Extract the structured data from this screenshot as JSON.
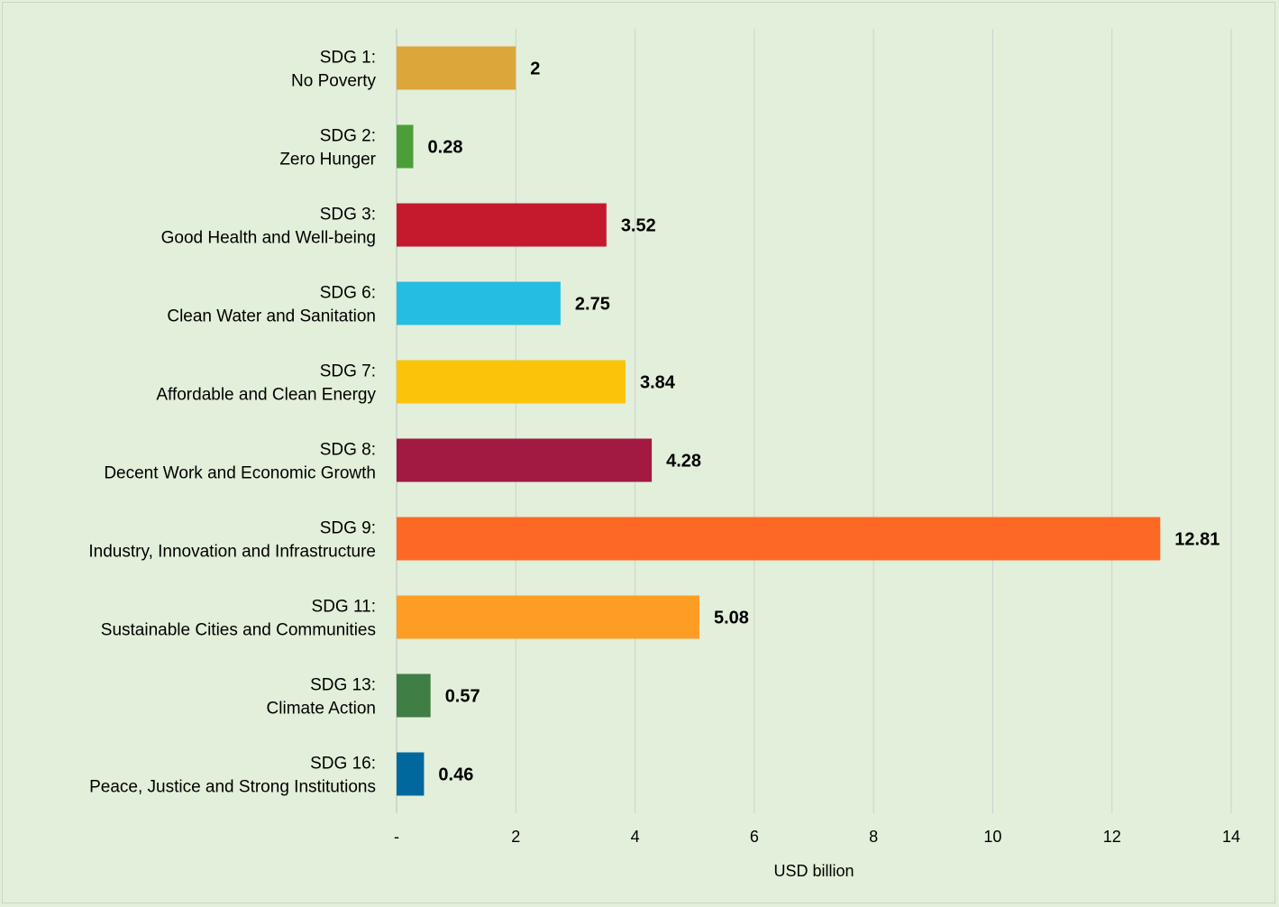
{
  "chart_data": {
    "type": "bar",
    "orientation": "horizontal",
    "categories": [
      {
        "line1": "SDG 1:",
        "line2": "No Poverty"
      },
      {
        "line1": "SDG 2:",
        "line2": "Zero Hunger"
      },
      {
        "line1": "SDG 3:",
        "line2": "Good Health and Well-being"
      },
      {
        "line1": "SDG 6:",
        "line2": "Clean Water and Sanitation"
      },
      {
        "line1": "SDG 7:",
        "line2": "Affordable and Clean Energy"
      },
      {
        "line1": "SDG 8:",
        "line2": "Decent Work and Economic Growth"
      },
      {
        "line1": "SDG 9:",
        "line2": "Industry, Innovation and Infrastructure"
      },
      {
        "line1": "SDG 11:",
        "line2": "Sustainable Cities and Communities"
      },
      {
        "line1": "SDG 13:",
        "line2": "Climate Action"
      },
      {
        "line1": "SDG 16:",
        "line2": "Peace, Justice and Strong Institutions"
      }
    ],
    "values": [
      2,
      0.28,
      3.52,
      2.75,
      3.84,
      4.28,
      12.81,
      5.08,
      0.57,
      0.46
    ],
    "value_labels": [
      "2",
      "0.28",
      "3.52",
      "2.75",
      "3.84",
      "4.28",
      "12.81",
      "5.08",
      "0.57",
      "0.46"
    ],
    "colors": [
      "#dda63a",
      "#4c9f38",
      "#c5192d",
      "#26bde2",
      "#fcc30b",
      "#a21942",
      "#fd6925",
      "#fd9d24",
      "#3f7e44",
      "#00689d"
    ],
    "xlim": [
      0,
      14
    ],
    "x_ticks": [
      0,
      2,
      4,
      6,
      8,
      10,
      12,
      14
    ],
    "x_tick_labels": [
      "-",
      "2",
      "4",
      "6",
      "8",
      "10",
      "12",
      "14"
    ],
    "xlabel": "USD billion",
    "ylabel": "",
    "title": "",
    "grid": true,
    "legend": false
  }
}
